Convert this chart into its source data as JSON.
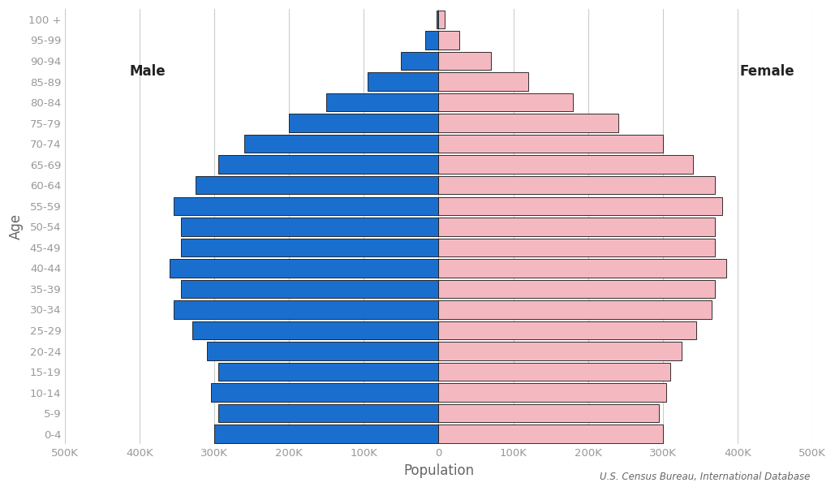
{
  "age_groups": [
    "0-4",
    "5-9",
    "10-14",
    "15-19",
    "20-24",
    "25-29",
    "30-34",
    "35-39",
    "40-44",
    "45-49",
    "50-54",
    "55-59",
    "60-64",
    "65-69",
    "70-74",
    "75-79",
    "80-84",
    "85-89",
    "90-94",
    "95-99",
    "100 +"
  ],
  "male": [
    300000,
    295000,
    305000,
    295000,
    310000,
    330000,
    355000,
    345000,
    360000,
    345000,
    345000,
    355000,
    325000,
    295000,
    260000,
    200000,
    150000,
    95000,
    50000,
    18000,
    3000
  ],
  "female": [
    300000,
    295000,
    305000,
    310000,
    325000,
    345000,
    365000,
    370000,
    385000,
    370000,
    370000,
    380000,
    370000,
    340000,
    300000,
    240000,
    180000,
    120000,
    70000,
    28000,
    8000
  ],
  "male_color": "#1a6fce",
  "female_color": "#f4b8c1",
  "bar_edge_color": "#111111",
  "bar_edge_width": 0.6,
  "xlim": 500000,
  "xlabel": "Population",
  "ylabel": "Age",
  "male_label": "Male",
  "female_label": "Female",
  "source_text": "U.S. Census Bureau, International Database",
  "background_color": "#ffffff",
  "grid_color": "#cccccc",
  "tick_color": "#999999",
  "label_color": "#666666",
  "tick_label_fontsize": 9.5,
  "axis_label_fontsize": 12,
  "annotation_fontsize": 12
}
